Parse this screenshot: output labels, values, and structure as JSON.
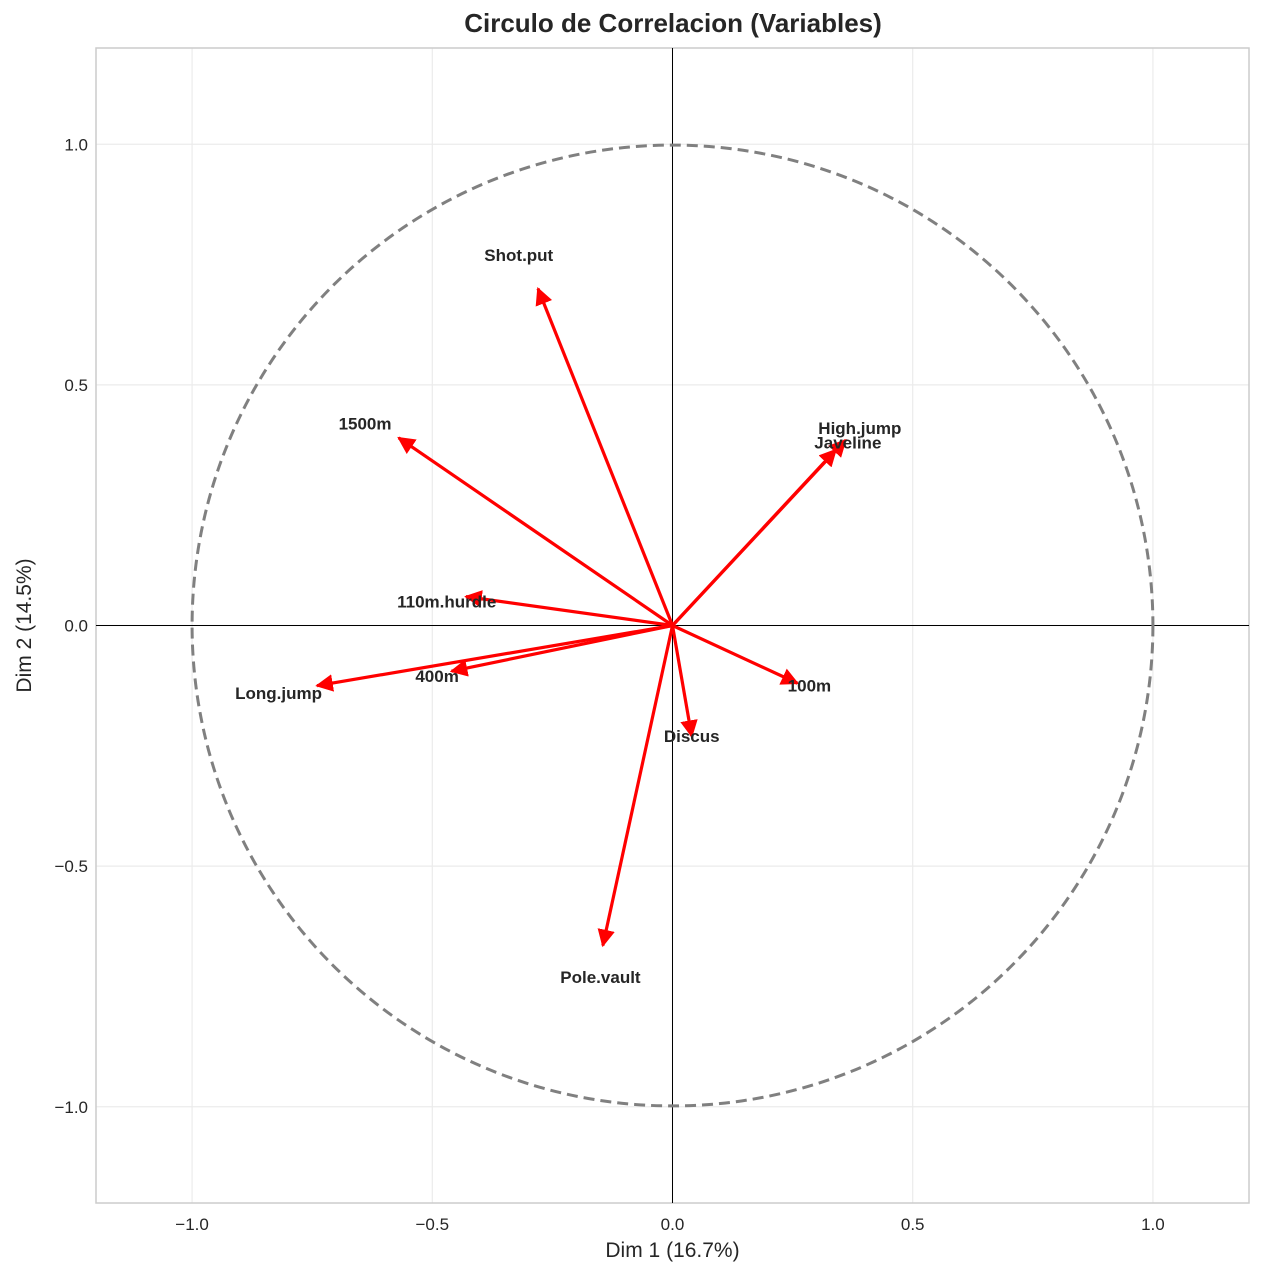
{
  "chart_data": {
    "type": "scatter",
    "subtype": "pca-correlation-circle",
    "title": "Circulo de Correlacion (Variables)",
    "xlabel": "Dim 1 (16.7%)",
    "ylabel": "Dim 2 (14.5%)",
    "xlim": [
      -1.2,
      1.2
    ],
    "ylim": [
      -1.2,
      1.2
    ],
    "xticks": [
      -1.0,
      -0.5,
      0.0,
      0.5,
      1.0
    ],
    "yticks": [
      -1.0,
      -0.5,
      0.0,
      0.5,
      1.0
    ],
    "xtick_labels": [
      "−1.0",
      "−0.5",
      "0.0",
      "0.5",
      "1.0"
    ],
    "ytick_labels": [
      "−1.0",
      "−0.5",
      "0.0",
      "0.5",
      "1.0"
    ],
    "grid": true,
    "unit_circle": {
      "radius": 1.0,
      "style": "dashed",
      "color": "#808080"
    },
    "arrow_color": "#ff0000",
    "variables": [
      {
        "name": "Shot.put",
        "x": -0.28,
        "y": 0.7,
        "label_x": -0.32,
        "label_y": 0.77
      },
      {
        "name": "1500m",
        "x": -0.57,
        "y": 0.39,
        "label_x": -0.64,
        "label_y": 0.42
      },
      {
        "name": "High.jump",
        "x": 0.36,
        "y": 0.385,
        "label_x": 0.39,
        "label_y": 0.41
      },
      {
        "name": "Javeline",
        "x": 0.34,
        "y": 0.365,
        "label_x": 0.365,
        "label_y": 0.38
      },
      {
        "name": "110m.hurdle",
        "x": -0.43,
        "y": 0.06,
        "label_x": -0.47,
        "label_y": 0.05
      },
      {
        "name": "Long.jump",
        "x": -0.74,
        "y": -0.125,
        "label_x": -0.82,
        "label_y": -0.14
      },
      {
        "name": "400m",
        "x": -0.46,
        "y": -0.095,
        "label_x": -0.49,
        "label_y": -0.105
      },
      {
        "name": "100m",
        "x": 0.26,
        "y": -0.12,
        "label_x": 0.285,
        "label_y": -0.125
      },
      {
        "name": "Discus",
        "x": 0.04,
        "y": -0.23,
        "label_x": 0.04,
        "label_y": -0.23
      },
      {
        "name": "Pole.vault",
        "x": -0.145,
        "y": -0.665,
        "label_x": -0.15,
        "label_y": -0.73
      }
    ]
  }
}
